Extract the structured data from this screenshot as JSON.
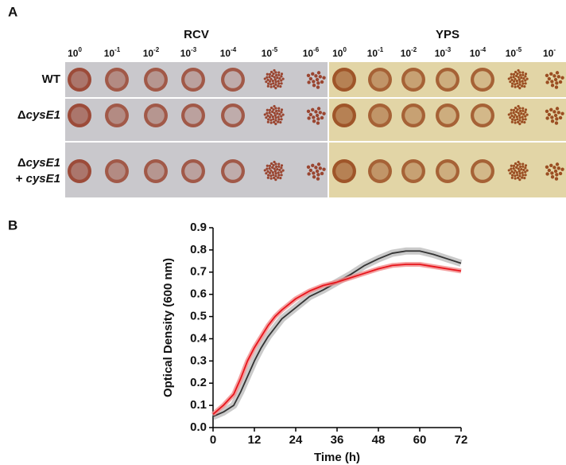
{
  "panel_a": {
    "panel_label": "A",
    "plates": [
      {
        "title": "RCV",
        "color": "#c9c8cc",
        "spot_color": "#9a4530",
        "dilutions": [
          {
            "base": "10",
            "exp": "0"
          },
          {
            "base": "10",
            "exp": "-1"
          },
          {
            "base": "10",
            "exp": "-2"
          },
          {
            "base": "10",
            "exp": "-3"
          },
          {
            "base": "10",
            "exp": "-4"
          },
          {
            "base": "10",
            "exp": "-5"
          },
          {
            "base": "10",
            "exp": "-6"
          }
        ]
      },
      {
        "title": "YPS",
        "color": "#e2d5a6",
        "spot_color": "#9b4e22",
        "dilutions": [
          {
            "base": "10",
            "exp": "0"
          },
          {
            "base": "10",
            "exp": "-1"
          },
          {
            "base": "10",
            "exp": "-2"
          },
          {
            "base": "10",
            "exp": "-3"
          },
          {
            "base": "10",
            "exp": "-4"
          },
          {
            "base": "10",
            "exp": "-5"
          },
          {
            "base": "10",
            "exp": "-"
          }
        ]
      }
    ],
    "rows": [
      [
        [
          {
            "text": "WT"
          }
        ]
      ],
      [
        [
          {
            "text": "Δ"
          },
          {
            "text": "cysE1",
            "italic": true
          }
        ]
      ],
      [
        [
          {
            "text": "Δ"
          },
          {
            "text": "cysE1",
            "italic": true
          }
        ],
        [
          {
            "text": "+ "
          },
          {
            "text": "cysE1",
            "italic": true
          }
        ]
      ]
    ]
  },
  "chart_data": {
    "type": "line",
    "panel_label": "B",
    "x_label": "Time (h)",
    "y_label": "Optical Density (600 nm)",
    "x": [
      0,
      3,
      6,
      8,
      10,
      12,
      14,
      16,
      18,
      20,
      24,
      28,
      32,
      36,
      40,
      44,
      48,
      52,
      56,
      60,
      64,
      68,
      72
    ],
    "series": [
      {
        "color": "#333333",
        "band_color": "#bdbdbd",
        "values": [
          0.05,
          0.07,
          0.1,
          0.16,
          0.23,
          0.3,
          0.36,
          0.41,
          0.45,
          0.49,
          0.54,
          0.59,
          0.62,
          0.655,
          0.69,
          0.73,
          0.76,
          0.785,
          0.795,
          0.795,
          0.78,
          0.76,
          0.74
        ]
      },
      {
        "color": "#e8141b",
        "band_color": "#f08a8a",
        "values": [
          0.06,
          0.1,
          0.15,
          0.22,
          0.3,
          0.36,
          0.41,
          0.46,
          0.5,
          0.53,
          0.58,
          0.615,
          0.64,
          0.655,
          0.675,
          0.695,
          0.715,
          0.73,
          0.735,
          0.735,
          0.725,
          0.715,
          0.705
        ]
      }
    ],
    "xlim": [
      0,
      72
    ],
    "xticks": [
      0,
      12,
      24,
      36,
      48,
      60,
      72
    ],
    "ylim": [
      0,
      0.9
    ],
    "yticks": [
      {
        "value": 0,
        "label": "0.0"
      },
      0.1,
      0.2,
      0.3,
      0.4,
      0.5,
      0.6,
      0.7,
      0.8,
      0.9
    ]
  }
}
